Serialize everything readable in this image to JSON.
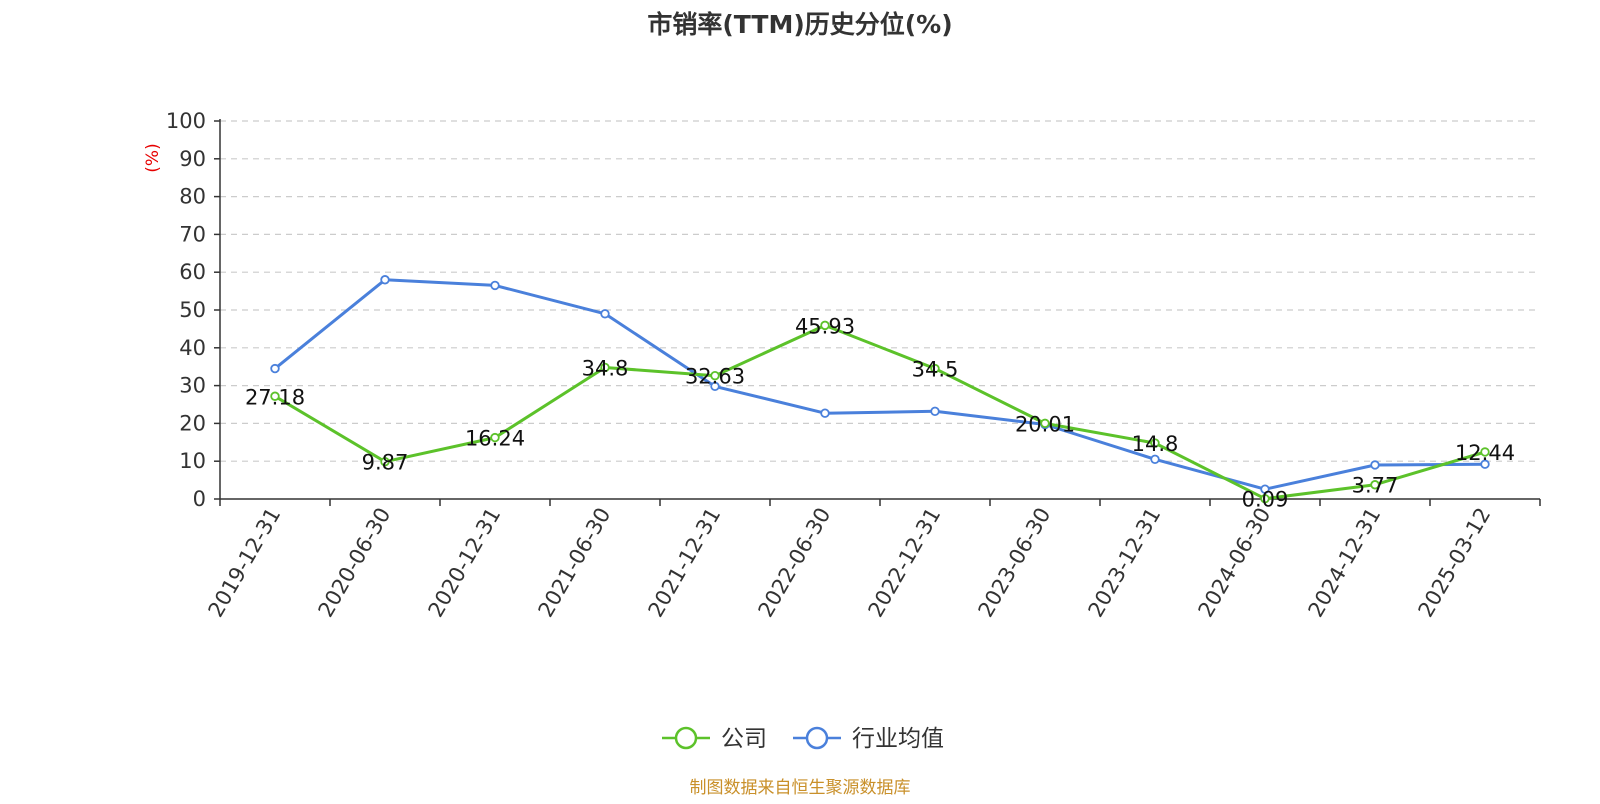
{
  "chart_data": {
    "type": "line",
    "title": "市销率(TTM)历史分位(%)",
    "ylabel": "(%)",
    "ylim": [
      0,
      100
    ],
    "yticks": [
      0,
      10,
      20,
      30,
      40,
      50,
      60,
      70,
      80,
      90,
      100
    ],
    "grid": true,
    "legend_position": "bottom-center",
    "categories": [
      "2019-12-31",
      "2020-06-30",
      "2020-12-31",
      "2021-06-30",
      "2021-12-31",
      "2022-06-30",
      "2022-12-31",
      "2023-06-30",
      "2023-12-31",
      "2024-06-30",
      "2024-12-31",
      "2025-03-12"
    ],
    "series": [
      {
        "name": "公司",
        "color": "#5cc22a",
        "values": [
          27.18,
          9.87,
          16.24,
          34.8,
          32.63,
          45.93,
          34.5,
          20.01,
          14.8,
          0.09,
          3.77,
          12.44
        ],
        "labels": [
          "27.18",
          "9.87",
          "16.24",
          "34.8",
          "32.63",
          "45.93",
          "34.5",
          "20.01",
          "14.8",
          "0.09",
          "3.77",
          "12.44"
        ]
      },
      {
        "name": "行业均值",
        "color": "#4a80db",
        "values": [
          34.5,
          58,
          56.5,
          49,
          29.8,
          22.7,
          23.2,
          19.7,
          10.5,
          2.6,
          9,
          9.2
        ]
      }
    ],
    "source": "制图数据来自恒生聚源数据库"
  }
}
